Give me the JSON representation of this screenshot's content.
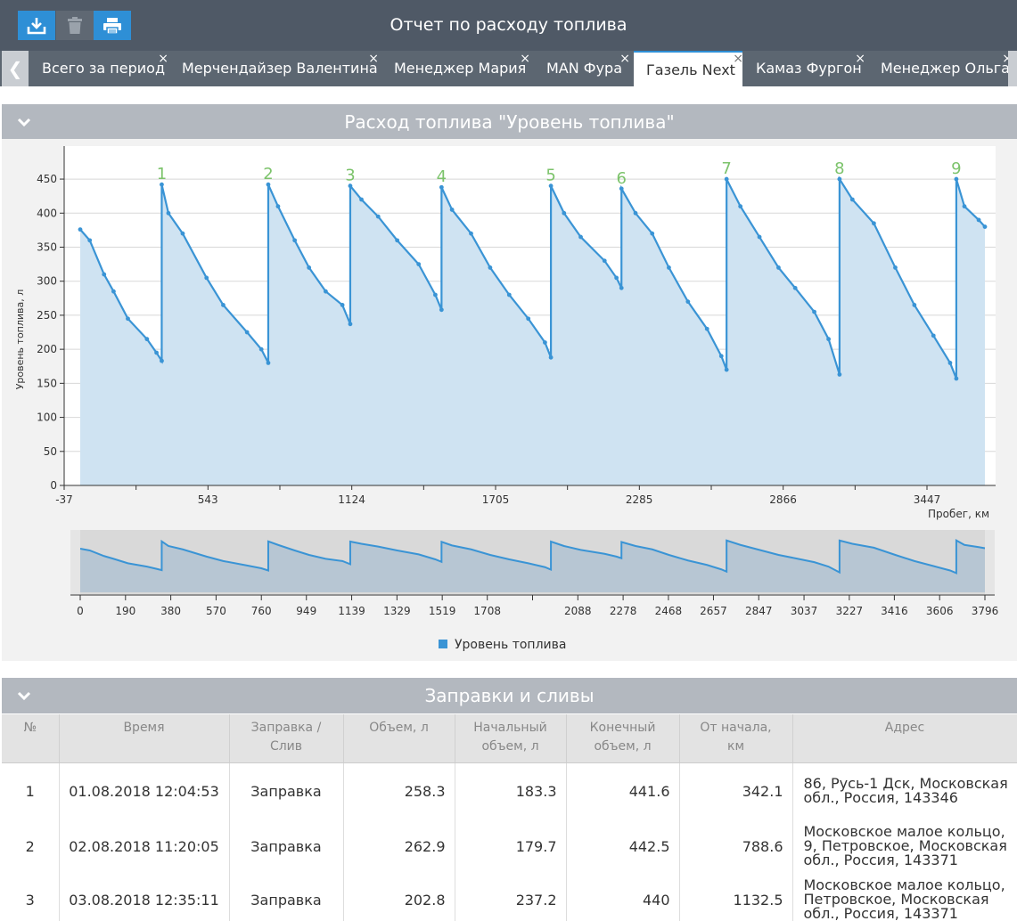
{
  "app": {
    "title": "Отчет по расходу топлива",
    "toolbar": [
      {
        "name": "download-button",
        "icon": "download-icon",
        "color": "#2e8fd6"
      },
      {
        "name": "delete-button",
        "icon": "trash-icon",
        "color": "#5f6873"
      },
      {
        "name": "print-button",
        "icon": "print-icon",
        "color": "#2e8fd6"
      }
    ]
  },
  "tabs": {
    "scroll_left_icon": "chevron-left-icon",
    "items": [
      {
        "label": "Всего за период",
        "active": false
      },
      {
        "label": "Мерчендайзер Валентина",
        "active": false
      },
      {
        "label": "Менеджер Мария",
        "active": false
      },
      {
        "label": "MAN Фура",
        "active": false
      },
      {
        "label": "Газель Next",
        "active": true
      },
      {
        "label": "Камаз Фургон",
        "active": false
      },
      {
        "label": "Менеджер Ольга",
        "active": false
      }
    ],
    "close_glyph": "×"
  },
  "chart_section": {
    "title": "Расход топлива \"Уровень топлива\""
  },
  "refuel_section": {
    "title": "Заправки и сливы"
  },
  "chart_data": {
    "type": "area",
    "title": "Расход топлива \"Уровень топлива\"",
    "xlabel": "Пробег, км",
    "ylabel": "Уровень топлива, л",
    "xlim": [
      -37,
      3796
    ],
    "ylim": [
      0,
      450
    ],
    "y_ticks": [
      0,
      50,
      100,
      150,
      200,
      250,
      300,
      350,
      400,
      450
    ],
    "x_ticks": [
      -37,
      543,
      1124,
      1705,
      2285,
      2866,
      3447
    ],
    "grid": true,
    "color": "#3a94d5",
    "fill": "#cfe3f2",
    "legend": {
      "position": "bottom",
      "label": "Уровень топлива"
    },
    "refuel_label_color": "#7cc36b",
    "refuel_markers": [
      {
        "label": "1",
        "x": 342,
        "y": 442
      },
      {
        "label": "2",
        "x": 789,
        "y": 442
      },
      {
        "label": "3",
        "x": 1133,
        "y": 440
      },
      {
        "label": "4",
        "x": 1516,
        "y": 438
      },
      {
        "label": "5",
        "x": 1975,
        "y": 440
      },
      {
        "label": "6",
        "x": 2271,
        "y": 436
      },
      {
        "label": "7",
        "x": 2712,
        "y": 450
      },
      {
        "label": "8",
        "x": 3186,
        "y": 450
      },
      {
        "label": "9",
        "x": 3676,
        "y": 450
      }
    ],
    "series": [
      {
        "name": "Уровень топлива",
        "points": [
          [
            0,
            376
          ],
          [
            40,
            360
          ],
          [
            100,
            310
          ],
          [
            140,
            285
          ],
          [
            200,
            245
          ],
          [
            280,
            215
          ],
          [
            320,
            195
          ],
          [
            342,
            183
          ],
          [
            342,
            442
          ],
          [
            370,
            400
          ],
          [
            430,
            370
          ],
          [
            530,
            305
          ],
          [
            600,
            265
          ],
          [
            700,
            225
          ],
          [
            760,
            200
          ],
          [
            789,
            180
          ],
          [
            789,
            442
          ],
          [
            830,
            410
          ],
          [
            900,
            360
          ],
          [
            960,
            320
          ],
          [
            1030,
            285
          ],
          [
            1100,
            265
          ],
          [
            1133,
            237
          ],
          [
            1133,
            440
          ],
          [
            1180,
            420
          ],
          [
            1250,
            395
          ],
          [
            1330,
            360
          ],
          [
            1420,
            325
          ],
          [
            1490,
            280
          ],
          [
            1516,
            258
          ],
          [
            1516,
            438
          ],
          [
            1560,
            405
          ],
          [
            1640,
            370
          ],
          [
            1720,
            320
          ],
          [
            1800,
            280
          ],
          [
            1880,
            245
          ],
          [
            1950,
            210
          ],
          [
            1975,
            188
          ],
          [
            1975,
            440
          ],
          [
            2030,
            400
          ],
          [
            2100,
            365
          ],
          [
            2200,
            330
          ],
          [
            2250,
            305
          ],
          [
            2271,
            290
          ],
          [
            2271,
            436
          ],
          [
            2330,
            400
          ],
          [
            2400,
            370
          ],
          [
            2470,
            320
          ],
          [
            2550,
            270
          ],
          [
            2630,
            230
          ],
          [
            2690,
            190
          ],
          [
            2712,
            170
          ],
          [
            2712,
            450
          ],
          [
            2770,
            410
          ],
          [
            2850,
            365
          ],
          [
            2930,
            320
          ],
          [
            3000,
            290
          ],
          [
            3080,
            255
          ],
          [
            3140,
            215
          ],
          [
            3186,
            163
          ],
          [
            3186,
            450
          ],
          [
            3240,
            420
          ],
          [
            3330,
            385
          ],
          [
            3420,
            320
          ],
          [
            3500,
            265
          ],
          [
            3580,
            220
          ],
          [
            3650,
            180
          ],
          [
            3676,
            157
          ],
          [
            3676,
            450
          ],
          [
            3710,
            410
          ],
          [
            3770,
            390
          ],
          [
            3796,
            380
          ]
        ]
      }
    ],
    "navigator": {
      "x_ticks": [
        0,
        190,
        380,
        570,
        760,
        949,
        1139,
        1329,
        1519,
        1708,
        2088,
        2278,
        2468,
        2657,
        2847,
        3037,
        3227,
        3416,
        3606,
        3796
      ],
      "xlim": [
        0,
        3796
      ]
    }
  },
  "table": {
    "headers": [
      "№",
      "Время",
      "Заправка / Слив",
      "Объем, л",
      "Начальный объем, л",
      "Конечный объем, л",
      "От начала, км",
      "Адрес"
    ],
    "header_lines": [
      [
        "№"
      ],
      [
        "Время"
      ],
      [
        "Заправка /",
        "Слив"
      ],
      [
        "Объем, л"
      ],
      [
        "Начальный",
        "объем, л"
      ],
      [
        "Конечный",
        "объем, л"
      ],
      [
        "От начала,",
        "км"
      ],
      [
        "Адрес"
      ]
    ],
    "rows": [
      {
        "num": "1",
        "time": "01.08.2018 12:04:53",
        "type": "Заправка",
        "volume": "258.3",
        "start": "183.3",
        "end": "441.6",
        "km": "342.1",
        "address_lines": [
          "86, Русь-1 Дск, Московская",
          "обл., Россия, 143346"
        ]
      },
      {
        "num": "2",
        "time": "02.08.2018 11:20:05",
        "type": "Заправка",
        "volume": "262.9",
        "start": "179.7",
        "end": "442.5",
        "km": "788.6",
        "address_lines": [
          "Московское малое кольцо,",
          "9, Петровское, Московская",
          "обл., Россия, 143371"
        ]
      },
      {
        "num": "3",
        "time": "03.08.2018 12:35:11",
        "type": "Заправка",
        "volume": "202.8",
        "start": "237.2",
        "end": "440",
        "km": "1132.5",
        "address_lines": [
          "Московское малое кольцо,",
          "Петровское, Московская",
          "обл., Россия, 143371"
        ]
      }
    ]
  }
}
